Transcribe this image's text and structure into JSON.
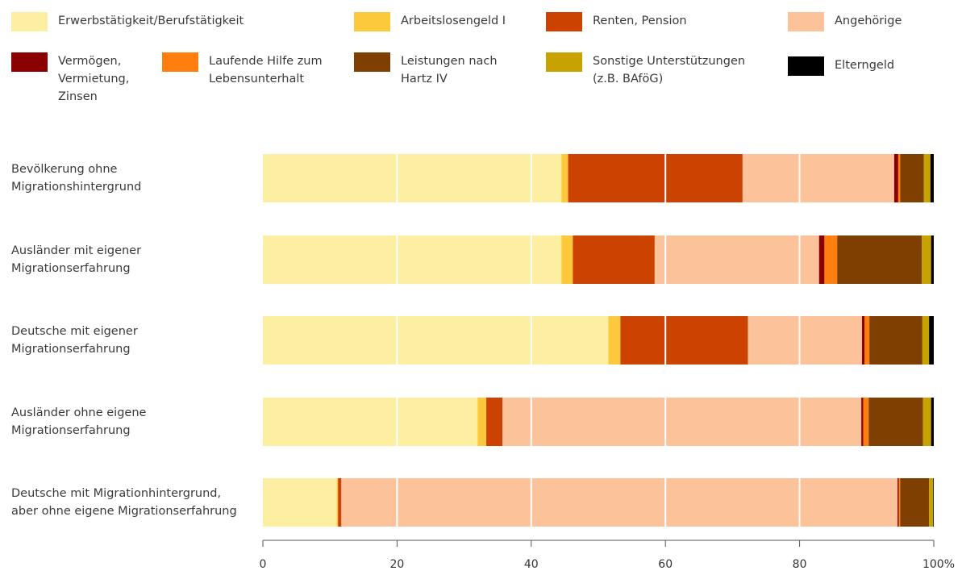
{
  "chart_data": {
    "type": "bar",
    "orientation": "horizontal",
    "stacked": true,
    "categories": [
      "Bevölkerung ohne\nMigrationshintergrund",
      "Ausländer mit eigener\nMigrationserfahrung",
      "Deutsche mit eigener\nMigrationserfahrung",
      "Ausländer ohne eigene\nMigrationserfahrung",
      "Deutsche mit Migrationhintergrund,\naber ohne eigene Migrationserfahrung"
    ],
    "series": [
      {
        "name": "Erwerbstätigkeit/Berufstätigkeit",
        "color": "#fcefa2",
        "values": [
          44.5,
          44.5,
          51.5,
          32.0,
          11.0
        ]
      },
      {
        "name": "Arbeitslosengeld I",
        "color": "#fbc93b",
        "values": [
          1.0,
          1.7,
          1.8,
          1.3,
          0.2
        ]
      },
      {
        "name": "Renten, Pension",
        "color": "#cc4200",
        "values": [
          26.0,
          12.2,
          19.0,
          2.4,
          0.5
        ]
      },
      {
        "name": "Angehörige",
        "color": "#fcc39b",
        "values": [
          22.6,
          24.5,
          17.0,
          53.5,
          82.9
        ]
      },
      {
        "name": "Vermögen,\nVermietung,\nZinsen",
        "color": "#8b0000",
        "values": [
          0.6,
          0.8,
          0.4,
          0.3,
          0.2
        ]
      },
      {
        "name": "Laufende Hilfe zum\nLebensunterhalt",
        "color": "#ff7f0e",
        "values": [
          0.3,
          1.9,
          0.7,
          0.8,
          0.2
        ]
      },
      {
        "name": "Leistungen nach\nHartz IV",
        "color": "#7f3f00",
        "values": [
          3.5,
          12.6,
          7.9,
          8.1,
          4.3
        ]
      },
      {
        "name": "Sonstige Unterstützungen\n(z.B. BAföG)",
        "color": "#c8a200",
        "values": [
          1.0,
          1.4,
          1.0,
          1.2,
          0.6
        ]
      },
      {
        "name": "Elterngeld",
        "color": "#000000",
        "values": [
          0.5,
          0.4,
          0.7,
          0.4,
          0.1
        ]
      }
    ],
    "xlim": [
      0,
      100
    ],
    "xticks": [
      "0",
      "20",
      "40",
      "60",
      "80",
      "100%"
    ],
    "grid": true,
    "legend_position": "top"
  }
}
